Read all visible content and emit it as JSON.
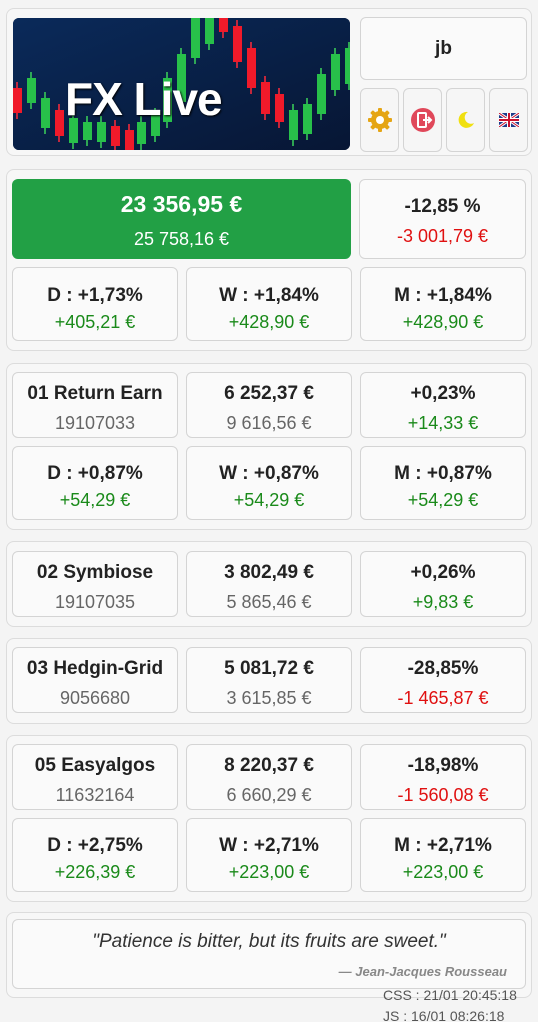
{
  "header": {
    "logo_text": "FX Live",
    "user": "jb",
    "icons": [
      "gear-icon",
      "logout-icon",
      "moon-icon",
      "uk-flag-icon"
    ]
  },
  "summary": {
    "balance": "23 356,95 €",
    "deposit": "25 758,16 €",
    "pct": "-12,85 %",
    "pnl": "-3 001,79 €",
    "periods": [
      {
        "label": "D : +1,73%",
        "value": "+405,21 €"
      },
      {
        "label": "W : +1,84%",
        "value": "+428,90 €"
      },
      {
        "label": "M : +1,84%",
        "value": "+428,90 €"
      }
    ]
  },
  "accounts": [
    {
      "name": "01 Return Earn",
      "number": "19107033",
      "equity": "6 252,37 €",
      "deposit": "9 616,56 €",
      "pct": "+0,23%",
      "pnl": "+14,33 €",
      "periods": [
        {
          "label": "D : +0,87%",
          "value": "+54,29 €"
        },
        {
          "label": "W : +0,87%",
          "value": "+54,29 €"
        },
        {
          "label": "M : +0,87%",
          "value": "+54,29 €"
        }
      ]
    },
    {
      "name": "02 Symbiose",
      "number": "19107035",
      "equity": "3 802,49 €",
      "deposit": "5 865,46 €",
      "pct": "+0,26%",
      "pnl": "+9,83 €"
    },
    {
      "name": "03 Hedgin-Grid",
      "number": "9056680",
      "equity": "5 081,72 €",
      "deposit": "3 615,85 €",
      "pct": "-28,85%",
      "pnl": "-1 465,87 €"
    },
    {
      "name": "05 Easyalgos",
      "number": "11632164",
      "equity": "8 220,37 €",
      "deposit": "6 660,29 €",
      "pct": "-18,98%",
      "pnl": "-1 560,08 €",
      "periods": [
        {
          "label": "D : +2,75%",
          "value": "+226,39 €"
        },
        {
          "label": "W : +2,71%",
          "value": "+223,00 €"
        },
        {
          "label": "M : +2,71%",
          "value": "+223,00 €"
        }
      ]
    }
  ],
  "quote": {
    "text": "\"Patience is bitter, but its fruits are sweet.\"",
    "author": "— Jean-Jacques Rousseau"
  },
  "versions": {
    "css": "CSS : 21/01 20:45:18",
    "js": "JS : 16/01 08:26:18"
  },
  "colors": {
    "green": "#22a045",
    "positive": "#1a8a1a",
    "negative": "#e01010"
  }
}
